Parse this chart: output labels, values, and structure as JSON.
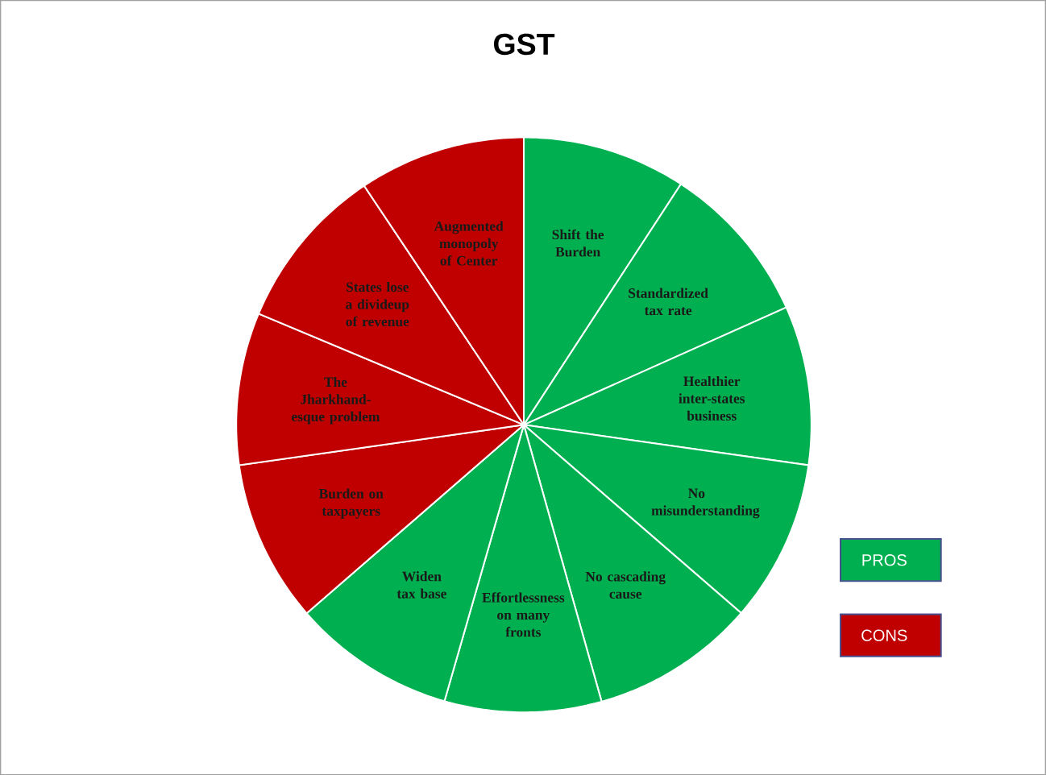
{
  "chart_data": {
    "type": "pie",
    "title": "GST",
    "categories": [
      "Shift the Burden",
      "Standardized tax rate",
      "Healthier inter-states business",
      "No misunderstanding",
      "No cascading cause",
      "Effortlessness on many fronts",
      "Widen tax base",
      "Burden on taxpayers",
      "The Jharkhand-esque problem",
      "States lose a divideup of revenue",
      "Augmented monopoly of Center"
    ],
    "values": [
      9.2,
      9.1,
      8.94,
      9.12,
      9.28,
      8.81,
      9.17,
      9.14,
      8.56,
      9.31,
      9.37
    ],
    "colors": [
      "#00b050",
      "#00b050",
      "#00b050",
      "#00b050",
      "#00b050",
      "#00b050",
      "#00b050",
      "#c00000",
      "#c00000",
      "#c00000",
      "#c00000"
    ],
    "annotations": [
      "PROS",
      "CONS"
    ]
  }
}
